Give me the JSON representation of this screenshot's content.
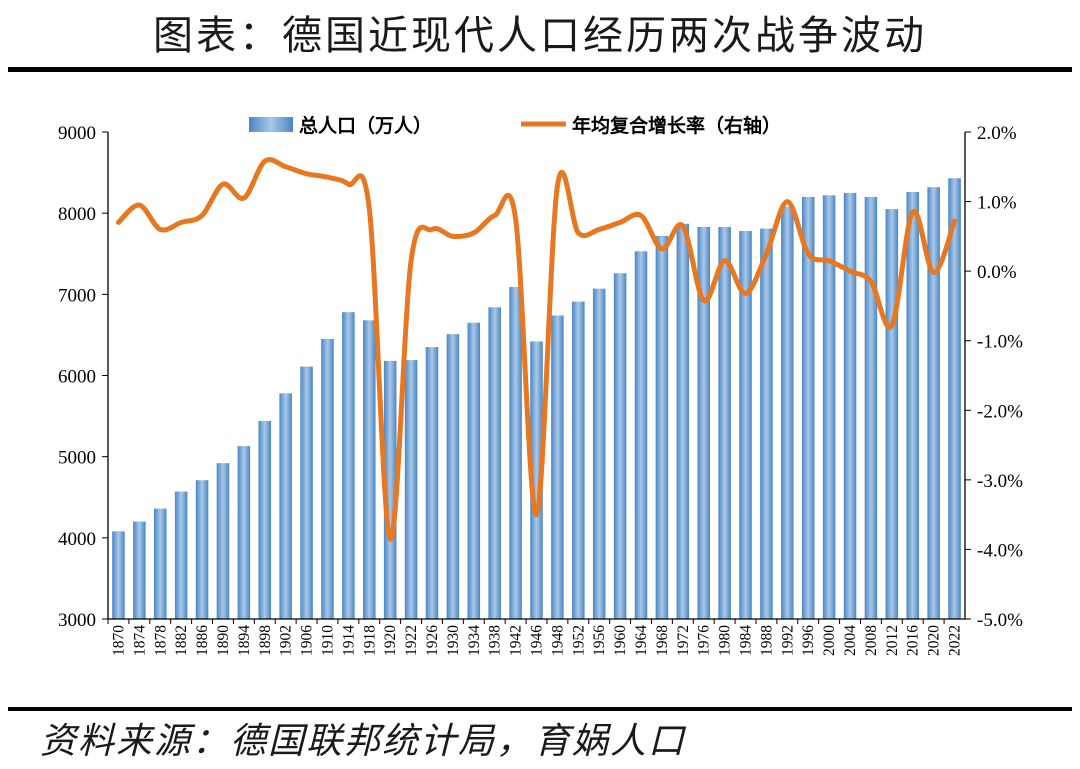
{
  "title": "图表：德国近现代人口经历两次战争波动",
  "source": "资料来源：德国联邦统计局，育娲人口",
  "colors": {
    "bar": "#4a86c4",
    "bar_light": "#a9c8e8",
    "line": "#e87722"
  },
  "chart_data": {
    "type": "bar+line",
    "x": [
      "1870",
      "1874",
      "1878",
      "1882",
      "1886",
      "1890",
      "1894",
      "1898",
      "1902",
      "1906",
      "1910",
      "1914",
      "1918",
      "1920",
      "1922",
      "1926",
      "1930",
      "1934",
      "1938",
      "1942",
      "1946",
      "1948",
      "1952",
      "1956",
      "1960",
      "1964",
      "1968",
      "1972",
      "1976",
      "1980",
      "1984",
      "1988",
      "1992",
      "1996",
      "2000",
      "2004",
      "2008",
      "2012",
      "2016",
      "2020",
      "2022"
    ],
    "x_tick_labels": [
      "1870",
      "1874",
      "1878",
      "1882",
      "1886",
      "1890",
      "1894",
      "1898",
      "1902",
      "1906",
      "1910",
      "1914",
      "1918",
      "1920",
      "1922",
      "1926",
      "1930",
      "1934",
      "1938",
      "1942",
      "1946",
      "1948",
      "1952",
      "1956",
      "1960",
      "1964",
      "1968",
      "1972",
      "1976",
      "1980",
      "1984",
      "1988",
      "1992",
      "1996",
      "2000",
      "2004",
      "2008",
      "2012",
      "2016",
      "2020",
      "2022"
    ],
    "series": [
      {
        "name": "总人口（万人）",
        "type": "bar",
        "axis": "left",
        "values": [
          4080,
          4200,
          4360,
          4570,
          4710,
          4920,
          5130,
          5440,
          5780,
          6110,
          6450,
          6780,
          6680,
          6180,
          6190,
          6350,
          6510,
          6650,
          6840,
          7090,
          6420,
          6740,
          6910,
          7070,
          7260,
          7530,
          7720,
          7870,
          7830,
          7830,
          7780,
          7810,
          8080,
          8200,
          8220,
          8250,
          8200,
          8050,
          8260,
          8320,
          8430
        ]
      },
      {
        "name": "年均复合增长率（右轴）",
        "type": "line",
        "axis": "right",
        "values": [
          0.7,
          0.95,
          0.6,
          0.7,
          0.8,
          1.25,
          1.05,
          1.58,
          1.5,
          1.4,
          1.35,
          1.25,
          0.9,
          -3.85,
          0.15,
          0.6,
          0.5,
          0.55,
          0.8,
          0.75,
          -3.5,
          1.22,
          0.55,
          0.6,
          0.7,
          0.8,
          0.32,
          0.65,
          -0.42,
          0.15,
          -0.32,
          0.25,
          1.0,
          0.25,
          0.15,
          0.0,
          -0.15,
          -0.78,
          0.85,
          -0.02,
          0.72
        ]
      }
    ],
    "y_left": {
      "min": 3000,
      "max": 9000,
      "step": 1000,
      "tick_labels": [
        "3000",
        "4000",
        "5000",
        "6000",
        "7000",
        "8000",
        "9000"
      ]
    },
    "y_right": {
      "min": -5.0,
      "max": 2.0,
      "step": 1.0,
      "tick_labels": [
        "-5.0%",
        "-4.0%",
        "-3.0%",
        "-2.0%",
        "-1.0%",
        "0.0%",
        "1.0%",
        "2.0%"
      ]
    },
    "legend_position": "top-center",
    "grid": false
  }
}
